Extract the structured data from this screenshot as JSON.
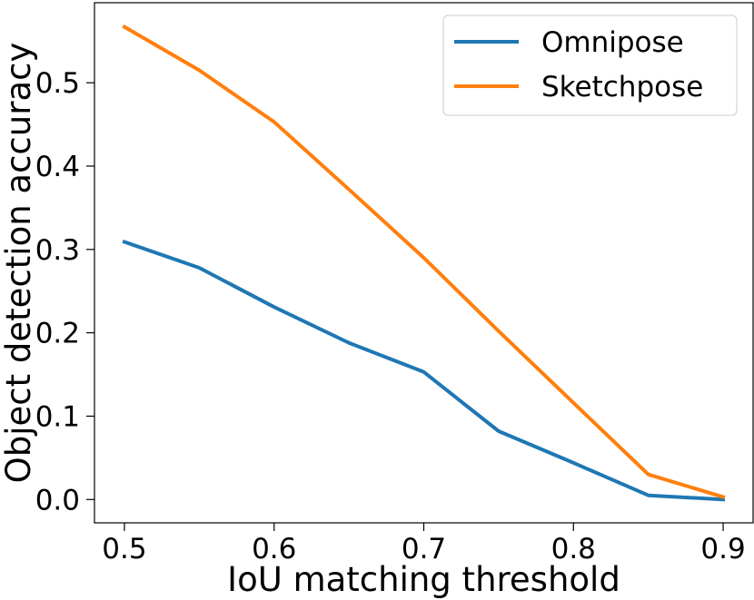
{
  "chart_data": {
    "type": "line",
    "xlabel": "IoU matching threshold",
    "ylabel": "Object detection accuracy",
    "x": [
      0.5,
      0.55,
      0.6,
      0.65,
      0.7,
      0.75,
      0.8,
      0.85,
      0.9
    ],
    "xlim": [
      0.48,
      0.92
    ],
    "ylim": [
      -0.028,
      0.596
    ],
    "xticks": [
      0.5,
      0.6,
      0.7,
      0.8,
      0.9
    ],
    "xtick_labels": [
      "0.5",
      "0.6",
      "0.7",
      "0.8",
      "0.9"
    ],
    "yticks": [
      0.0,
      0.1,
      0.2,
      0.3,
      0.4,
      0.5
    ],
    "ytick_labels": [
      "0.0",
      "0.1",
      "0.2",
      "0.3",
      "0.4",
      "0.5"
    ],
    "grid": false,
    "legend_position": "top-right",
    "series": [
      {
        "name": "Omnipose",
        "color": "#1f77b4",
        "values": [
          0.309,
          0.278,
          0.231,
          0.188,
          0.153,
          0.082,
          0.044,
          0.005,
          0.0
        ]
      },
      {
        "name": "Sketchpose",
        "color": "#ff7f0e",
        "values": [
          0.567,
          0.515,
          0.453,
          0.372,
          0.29,
          0.202,
          0.116,
          0.03,
          0.003
        ]
      }
    ]
  }
}
